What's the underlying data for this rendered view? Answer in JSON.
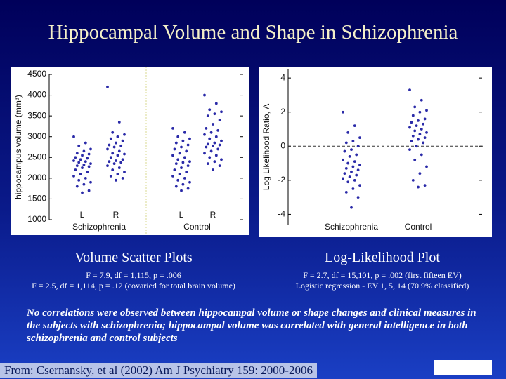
{
  "title": "Hippocampal Volume and Shape in Schizophrenia",
  "captions": [
    {
      "heading": "Volume Scatter Plots",
      "lines": [
        "F = 7.9, df = 1,115, p = .006",
        "F = 2.5, df = 1,114, p = .12 (covaried for total brain volume)"
      ]
    },
    {
      "heading": "Log-Likelihood Plot",
      "lines": [
        "F = 2.7, df = 15,101, p = .002 (first fifteen EV)",
        "Logistic regression - EV 1, 5, 14 (70.9% classified)"
      ]
    }
  ],
  "note": "No correlations were observed between hippocampal volume or shape changes and clinical measures in the subjects with schizophrenia; hippocampal volume was correlated with general intelligence in both schizophrenia and control subjects",
  "source": "From: Csernansky, et al (2002) Am J Psychiatry 159: 2000-2006",
  "chart_data": [
    {
      "type": "strip",
      "y_label": "hippocampus volume (mm³)",
      "categories": [
        "L",
        "R",
        "L",
        "R"
      ],
      "groups": [
        "Schizophrenia",
        "Control"
      ],
      "color": "#2a2aa8",
      "ylim": [
        1000,
        4500
      ],
      "yticks": [
        1000,
        1500,
        2000,
        2500,
        3000,
        3500,
        4000,
        4500
      ],
      "values": [
        [
          3000,
          2850,
          2780,
          2700,
          2650,
          2600,
          2580,
          2550,
          2500,
          2480,
          2450,
          2420,
          2400,
          2380,
          2350,
          2320,
          2300,
          2280,
          2250,
          2200,
          2150,
          2100,
          2050,
          2000,
          1950,
          1900,
          1850,
          1800,
          1700,
          1650
        ],
        [
          4200,
          3350,
          3100,
          3050,
          3000,
          2950,
          2900,
          2850,
          2800,
          2780,
          2750,
          2700,
          2650,
          2600,
          2580,
          2550,
          2500,
          2450,
          2420,
          2400,
          2380,
          2350,
          2300,
          2250,
          2200,
          2150,
          2100,
          2050,
          2000,
          1950
        ],
        [
          3200,
          3100,
          3000,
          2950,
          2900,
          2850,
          2800,
          2750,
          2700,
          2650,
          2600,
          2550,
          2500,
          2450,
          2400,
          2380,
          2350,
          2300,
          2250,
          2200,
          2150,
          2100,
          2050,
          2000,
          1950,
          1900,
          1850,
          1800,
          1750,
          1700
        ],
        [
          4000,
          3800,
          3650,
          3600,
          3550,
          3500,
          3400,
          3300,
          3200,
          3150,
          3100,
          3050,
          3000,
          2950,
          2900,
          2850,
          2820,
          2800,
          2780,
          2750,
          2700,
          2650,
          2600,
          2550,
          2500,
          2450,
          2400,
          2350,
          2300,
          2200
        ]
      ]
    },
    {
      "type": "strip",
      "y_label": "Log Likelihood Ratio, Λ",
      "categories": [
        "Schizophrenia",
        "Control"
      ],
      "color": "#2a2aa8",
      "ylim": [
        -4.6,
        4.5
      ],
      "yticks": [
        -4,
        -2,
        0,
        2,
        4
      ],
      "hline": 0,
      "values": [
        [
          2.0,
          1.2,
          0.8,
          0.5,
          0.3,
          0.2,
          0,
          -0.2,
          -0.3,
          -0.5,
          -0.6,
          -0.8,
          -0.9,
          -1.0,
          -1.1,
          -1.2,
          -1.3,
          -1.4,
          -1.5,
          -1.6,
          -1.7,
          -1.8,
          -1.9,
          -2.0,
          -2.1,
          -2.3,
          -2.5,
          -2.7,
          -3.0,
          -3.6
        ],
        [
          3.3,
          2.7,
          2.3,
          2.1,
          2.0,
          1.8,
          1.6,
          1.5,
          1.4,
          1.3,
          1.2,
          1.1,
          1.0,
          0.9,
          0.8,
          0.7,
          0.6,
          0.5,
          0.4,
          0.3,
          0.2,
          0,
          -0.2,
          -0.5,
          -0.8,
          -1.2,
          -1.6,
          -2.0,
          -2.3,
          -2.4
        ]
      ]
    }
  ]
}
